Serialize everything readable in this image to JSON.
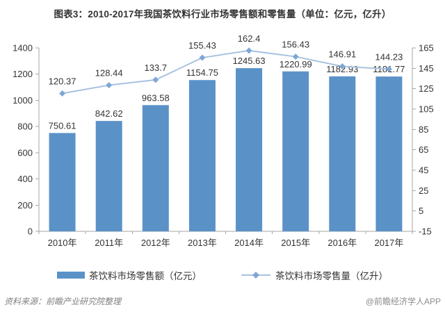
{
  "title": "图表3：2010-2017年我国茶饮料行业市场零售额和零售量（单位：亿元，亿升）",
  "chart_data": {
    "type": "bar",
    "subtype": "bar-and-line-dual-axis",
    "categories": [
      "2010年",
      "2011年",
      "2012年",
      "2013年",
      "2014年",
      "2015年",
      "2016年",
      "2017年"
    ],
    "series": [
      {
        "name": "茶饮料市场零售额（亿元）",
        "type": "bar",
        "axis": "left",
        "values": [
          750.61,
          842.62,
          963.58,
          1154.75,
          1245.63,
          1220.99,
          1182.93,
          1181.77
        ],
        "color": "#5a92c8"
      },
      {
        "name": "茶饮料市场零售量（亿升）",
        "type": "line",
        "axis": "right",
        "values": [
          120.37,
          128.44,
          133.7,
          155.43,
          162.4,
          156.43,
          146.91,
          144.23
        ],
        "color": "#a8c2e0",
        "marker": "diamond",
        "marker_color": "#7fa7d4"
      }
    ],
    "left_axis": {
      "min": 0,
      "max": 1400,
      "step": 200,
      "tick_labels": [
        "0",
        "200",
        "400",
        "600",
        "800",
        "1000",
        "1200",
        "1400"
      ]
    },
    "right_axis": {
      "min": -15,
      "max": 165,
      "step": 20,
      "tick_labels": [
        "-15",
        "5",
        "25",
        "45",
        "65",
        "85",
        "105",
        "125",
        "145",
        "165"
      ]
    },
    "grid": false,
    "legend_position": "bottom",
    "data_labels": true
  },
  "legend": {
    "items": [
      {
        "label": "茶饮料市场零售额（亿元）",
        "swatch": "bar"
      },
      {
        "label": "茶饮料市场零售量（亿升）",
        "swatch": "line-diamond"
      }
    ]
  },
  "footer": {
    "source": "资料来源：前瞻产业研究院整理",
    "watermark": "@前瞻经济学人APP"
  },
  "colors": {
    "bar": "#5a92c8",
    "line": "#a8c2e0",
    "marker": "#7fa7d4",
    "axis_line": "#a6a6a6",
    "text": "#333333",
    "footer_text": "#808080"
  }
}
